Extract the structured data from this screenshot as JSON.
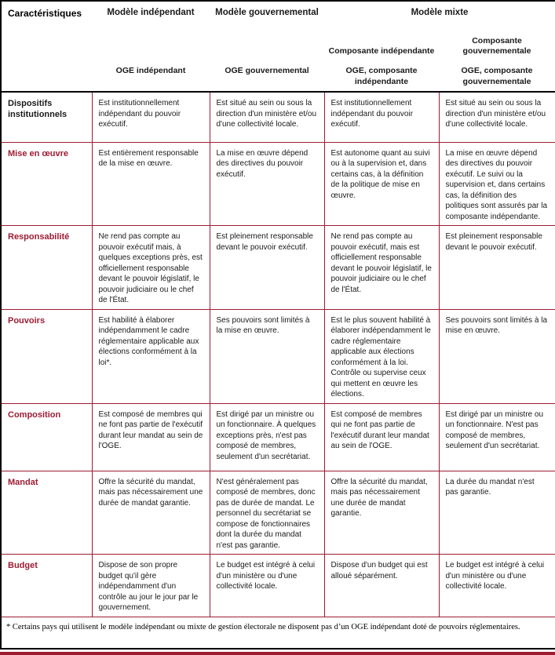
{
  "colors": {
    "accent_maroon": "#9e1b32",
    "border_black": "#000000",
    "text": "#1a1a1a"
  },
  "header": {
    "characteristics": "Caractéristiques",
    "model_independent": "Modèle indépendant",
    "model_governmental": "Modèle gouvernemental",
    "model_mixed": "Modèle mixte",
    "component_independent": "Composante indépendante",
    "component_governmental": "Composante gouvernementale",
    "emb_independent": "OGE indépendant",
    "emb_governmental": "OGE gouvernemental",
    "emb_component_independent": "OGE, composante indépendante",
    "emb_component_governmental": "OGE, composante gouvernementale"
  },
  "rows": [
    {
      "label": "Dispositifs institutionnels",
      "independent": "Est institutionnellement indépendant du pouvoir exécutif.",
      "governmental": "Est situé au sein ou sous la direction d'un ministère et/ou d'une collectivité locale.",
      "mixed_independent": "Est institutionnellement indépendant du pouvoir exécutif.",
      "mixed_governmental": "Est situé au sein ou sous la direction d'un ministère et/ou d'une collectivité locale."
    },
    {
      "label": "Mise en œuvre",
      "independent": "Est entièrement responsable de la mise en œuvre.",
      "governmental": "La mise en œuvre dépend des directives du pouvoir exécutif.",
      "mixed_independent": "Est autonome quant au suivi ou à la supervision et, dans certains cas, à la définition de la politique de mise en œuvre.",
      "mixed_governmental": "La mise en œuvre dépend des directives du pouvoir exécutif. Le suivi ou la supervision et, dans certains cas, la définition des politiques sont assurés par la composante indépendante."
    },
    {
      "label": "Responsabilité",
      "independent": "Ne rend pas compte au pouvoir exécutif mais, à quelques exceptions près, est officiellement responsable devant le pouvoir législatif, le pouvoir judiciaire ou le chef de l'État.",
      "governmental": "Est pleinement responsable devant le pouvoir exécutif.",
      "mixed_independent": "Ne rend pas compte au pouvoir exécutif, mais est officiellement responsable devant le pouvoir législatif, le pouvoir judiciaire ou le chef de l'État.",
      "mixed_governmental": "Est pleinement responsable devant le pouvoir exécutif."
    },
    {
      "label": "Pouvoirs",
      "independent": "Est habilité à élaborer indépendamment le cadre réglementaire applicable aux élections conformément à la loi*.",
      "governmental": "Ses pouvoirs sont limités à la mise en œuvre.",
      "mixed_independent": "Est le plus souvent habilité à élaborer indépendamment le cadre réglementaire applicable aux élections conformément à la loi. Contrôle ou supervise ceux qui mettent en œuvre les élections.",
      "mixed_governmental": "Ses pouvoirs sont limités à la mise en œuvre."
    },
    {
      "label": "Composition",
      "independent": "Est composé de membres qui ne font pas partie de l'exécutif durant leur mandat au sein de l'OGE.",
      "governmental": "Est dirigé par un ministre ou un fonctionnaire. À quelques exceptions près, n'est pas composé de membres, seulement d'un secrétariat.",
      "mixed_independent": "Est composé de membres qui ne font pas partie de l'exécutif durant leur mandat au sein de l'OGE.",
      "mixed_governmental": "Est dirigé par un ministre ou un fonctionnaire. N'est pas composé de membres, seulement d'un secrétariat."
    },
    {
      "label": "Mandat",
      "independent": "Offre la sécurité du mandat, mais pas nécessairement une durée de mandat garantie.",
      "governmental": "N'est généralement pas composé de membres, donc pas de durée de mandat. Le personnel du secrétariat se compose de fonctionnaires dont la durée du mandat n'est pas garantie.",
      "mixed_independent": "Offre la sécurité du mandat, mais pas nécessairement une durée de mandat garantie.",
      "mixed_governmental": "La durée du mandat n'est pas garantie."
    },
    {
      "label": "Budget",
      "independent": "Dispose de son propre budget qu'il gère indépendamment d'un contrôle au jour le jour par le gouvernement.",
      "governmental": "Le budget est intégré à celui d'un ministère ou d'une collectivité locale.",
      "mixed_independent": "Dispose d'un budget qui est alloué séparément.",
      "mixed_governmental": "Le budget est intégré à celui d'un ministère ou d'une collectivité locale."
    }
  ],
  "footnote": "* Certains pays qui utilisent le modèle indépendant ou mixte de gestion électorale ne disposent pas d’un OGE indépendant doté de pouvoirs réglementaires."
}
